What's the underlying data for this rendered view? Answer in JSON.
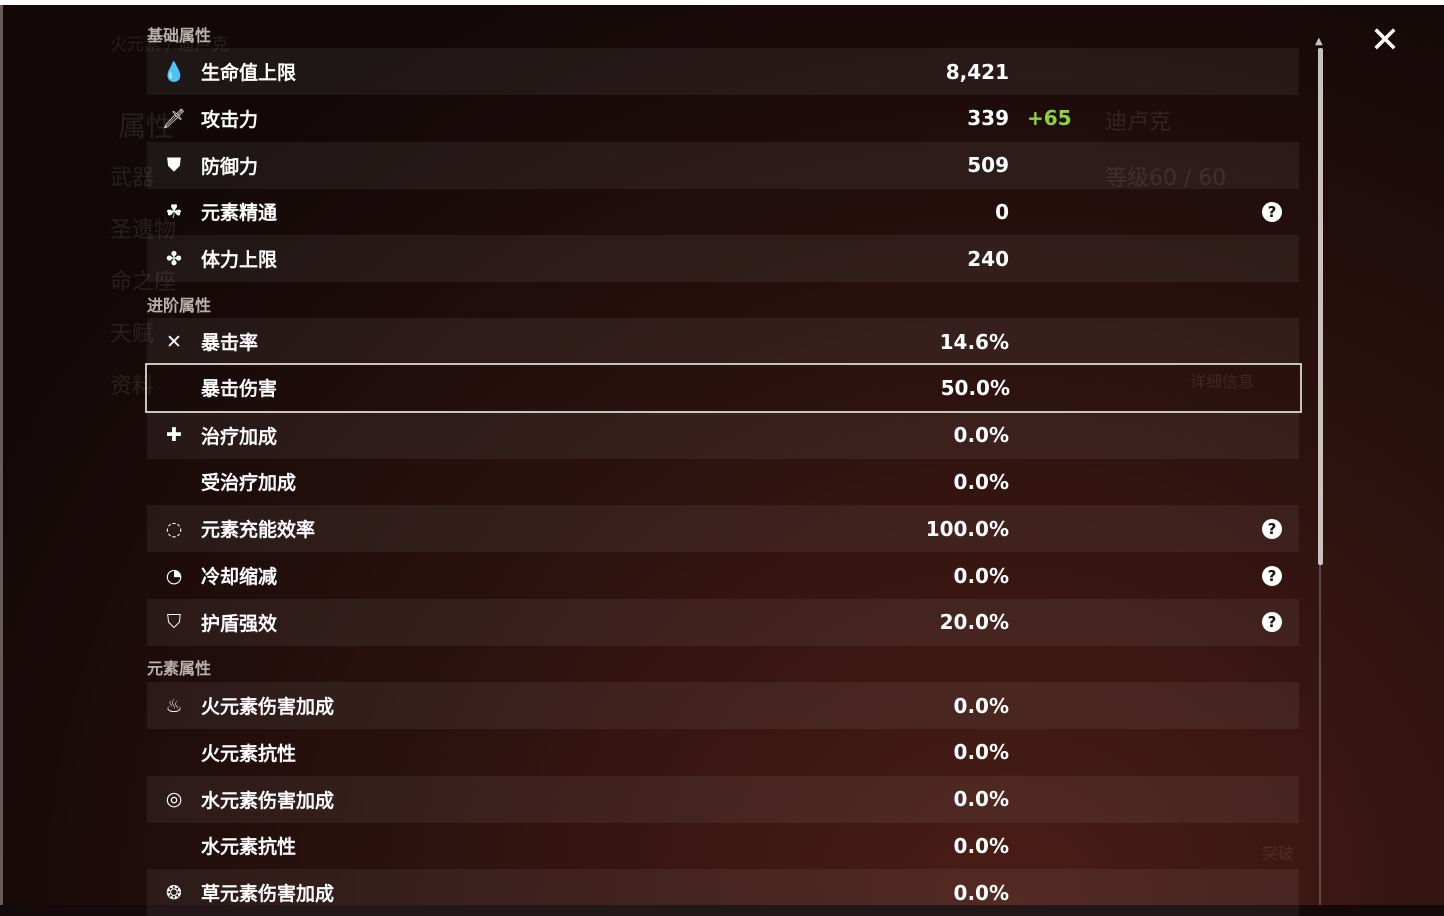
{
  "background": {
    "element_character": "火元素 / 迪卢克",
    "left_menu": [
      "属性",
      "武器",
      "圣遗物",
      "命之座",
      "天赋",
      "资料"
    ],
    "character_name": "迪卢克",
    "level": "等级60 / 60",
    "details_button": "详细信息",
    "ascend_button": "突破"
  },
  "sections": [
    {
      "title": "基础属性",
      "rows": [
        {
          "icon": "hp-drop-icon",
          "glyph": "💧",
          "label": "生命值上限",
          "value": "8,421"
        },
        {
          "icon": "sword-icon",
          "glyph": "🗡",
          "label": "攻击力",
          "value": "339",
          "bonus": "+65"
        },
        {
          "icon": "shield-icon",
          "glyph": "⛊",
          "label": "防御力",
          "value": "509"
        },
        {
          "icon": "elemental-mastery-icon",
          "glyph": "☘",
          "label": "元素精通",
          "value": "0",
          "help": true
        },
        {
          "icon": "stamina-icon",
          "glyph": "✤",
          "label": "体力上限",
          "value": "240"
        }
      ]
    },
    {
      "title": "进阶属性",
      "rows": [
        {
          "icon": "crit-rate-icon",
          "glyph": "✕",
          "label": "暴击率",
          "value": "14.6%"
        },
        {
          "icon": "",
          "glyph": "",
          "label": "暴击伤害",
          "value": "50.0%",
          "selected": true
        },
        {
          "icon": "healing-cross-icon",
          "glyph": "✚",
          "label": "治疗加成",
          "value": "0.0%"
        },
        {
          "icon": "",
          "glyph": "",
          "label": "受治疗加成",
          "value": "0.0%"
        },
        {
          "icon": "energy-recharge-icon",
          "glyph": "◌",
          "label": "元素充能效率",
          "value": "100.0%",
          "help": true
        },
        {
          "icon": "cooldown-icon",
          "glyph": "◔",
          "label": "冷却缩减",
          "value": "0.0%",
          "help": true
        },
        {
          "icon": "shield-strength-icon",
          "glyph": "⛉",
          "label": "护盾强效",
          "value": "20.0%",
          "help": true
        }
      ]
    },
    {
      "title": "元素属性",
      "rows": [
        {
          "icon": "pyro-icon",
          "glyph": "♨",
          "label": "火元素伤害加成",
          "value": "0.0%"
        },
        {
          "icon": "",
          "glyph": "",
          "label": "火元素抗性",
          "value": "0.0%"
        },
        {
          "icon": "hydro-icon",
          "glyph": "◎",
          "label": "水元素伤害加成",
          "value": "0.0%"
        },
        {
          "icon": "",
          "glyph": "",
          "label": "水元素抗性",
          "value": "0.0%"
        },
        {
          "icon": "dendro-icon",
          "glyph": "❂",
          "label": "草元素伤害加成",
          "value": "0.0%"
        }
      ]
    }
  ],
  "help_glyph": "?",
  "close_glyph": "✕",
  "colors": {
    "bonus": "#8fd33b",
    "selected_border": "#c9c3c0"
  }
}
